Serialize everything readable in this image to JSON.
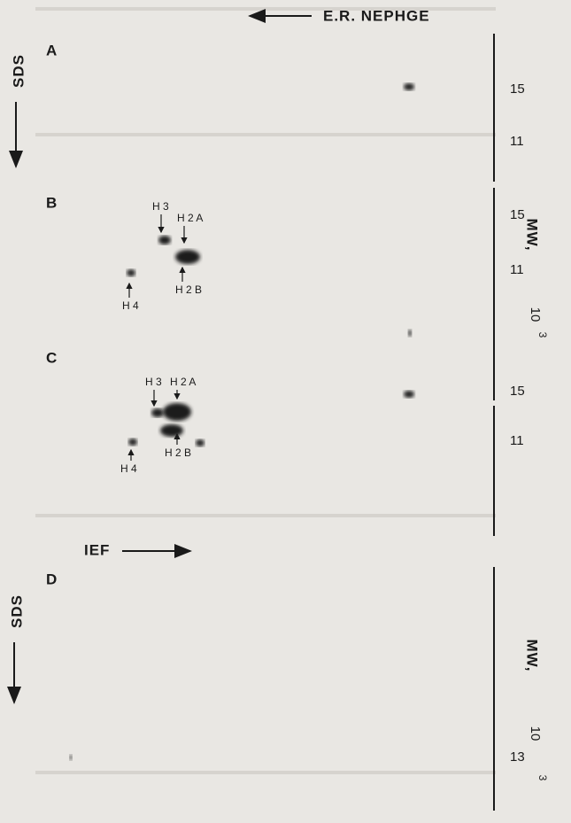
{
  "header": {
    "direction_label": "E.R. NEPHGE"
  },
  "panels": [
    {
      "letter": "A",
      "axis_label": "SDS",
      "mw_ticks": [
        "15",
        "11"
      ]
    },
    {
      "letter": "B",
      "spot_labels": [
        "H 3",
        "H 2 A",
        "H 2 B",
        "H 4"
      ],
      "mw_ticks": [
        "15",
        "11"
      ],
      "mw_label": {
        "text": "MW,",
        "base": "10",
        "exponent": "3"
      }
    },
    {
      "letter": "C",
      "spot_labels": [
        "H 3",
        "H 2 A",
        "H 2 B",
        "H 4"
      ],
      "mw_ticks": [
        "15",
        "11"
      ]
    },
    {
      "letter": "D",
      "direction_label": "IEF",
      "axis_label": "SDS",
      "mw_ticks": [
        "13"
      ],
      "mw_label": {
        "text": "MW,",
        "base": "10",
        "exponent": "3"
      }
    }
  ]
}
